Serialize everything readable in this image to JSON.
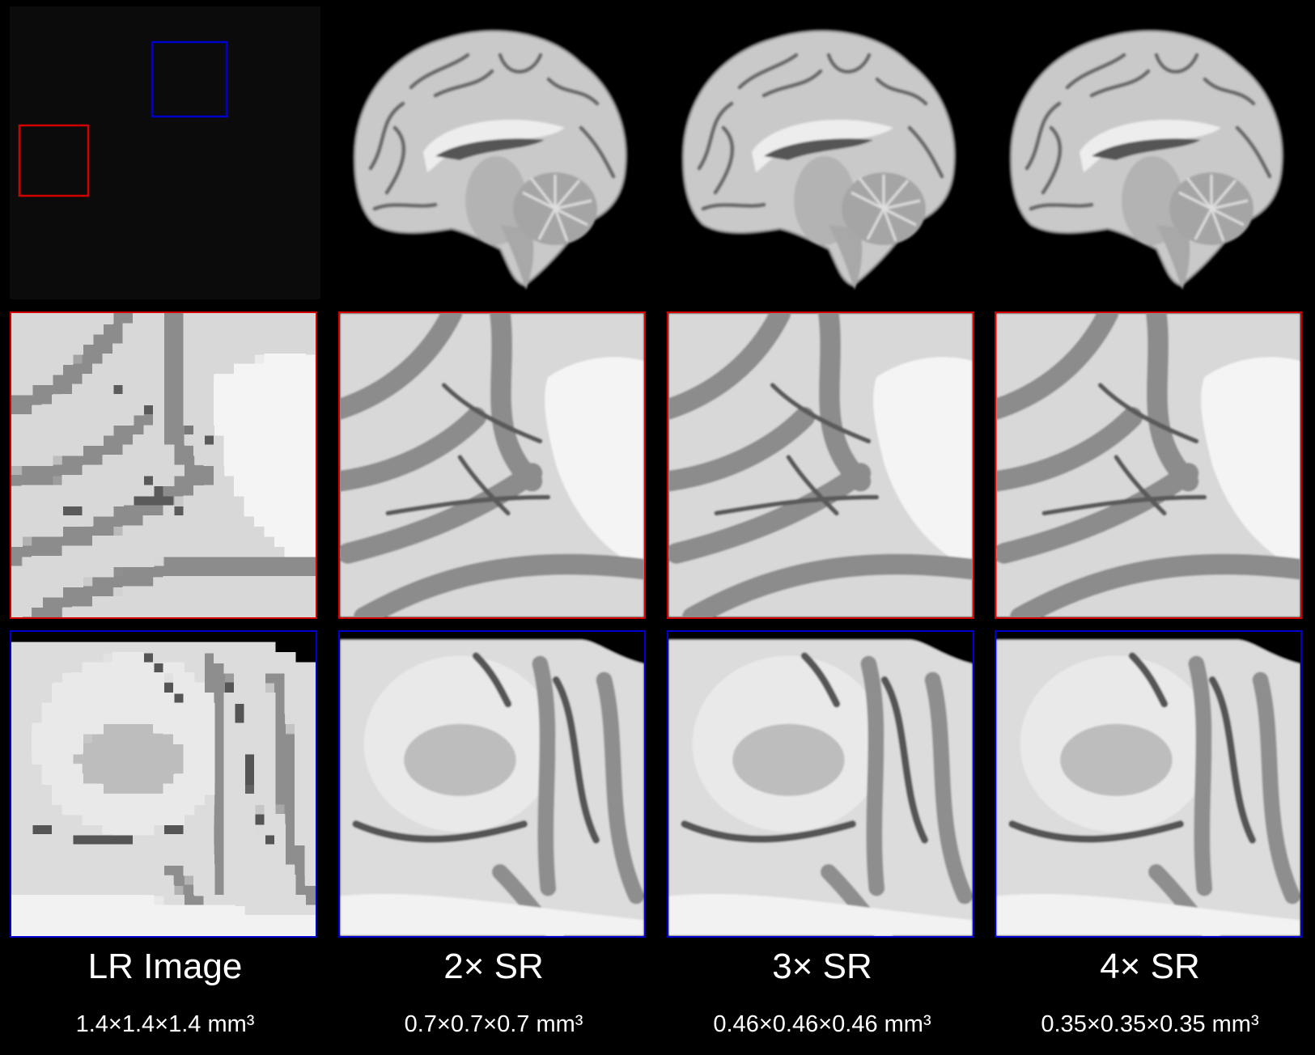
{
  "columns": [
    {
      "title": "LR Image",
      "resolution": "1.4×1.4×1.4 mm³"
    },
    {
      "title": "2× SR",
      "resolution": "0.7×0.7×0.7 mm³"
    },
    {
      "title": "3× SR",
      "resolution": "0.46×0.46×0.46 mm³"
    },
    {
      "title": "4× SR",
      "resolution": "0.35×0.35×0.35 mm³"
    }
  ],
  "colors": {
    "background": "#000000",
    "red_roi": "#d40000",
    "blue_roi": "#0000cc"
  }
}
